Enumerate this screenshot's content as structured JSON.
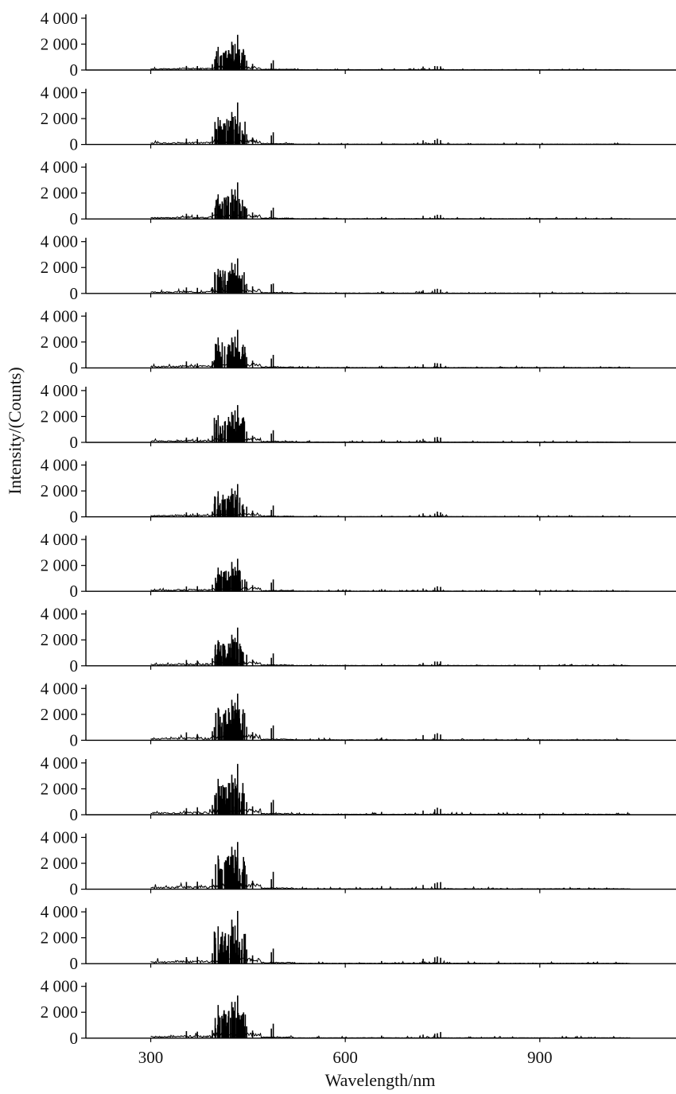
{
  "chart_data": {
    "type": "line",
    "layout": "stacked-panels",
    "panel_count": 14,
    "xlabel": "Wavelength/nm",
    "ylabel": "Intensity/(Counts)",
    "xlim": [
      200,
      1110
    ],
    "ylim": [
      0,
      4300
    ],
    "x_ticks": [
      300,
      600,
      900
    ],
    "x_tick_labels": [
      "300",
      "600",
      "900"
    ],
    "y_ticks": [
      0,
      2000,
      4000
    ],
    "y_tick_labels": [
      "0",
      "2 000",
      "4 000"
    ],
    "grid": false,
    "legend": "none",
    "series_color": "#000000",
    "prominent_peaks_nm": [
      404,
      414,
      420,
      425,
      427,
      430,
      434,
      437,
      441,
      448,
      486,
      489,
      656,
      720,
      738,
      742,
      747
    ],
    "panels": [
      {
        "peak_max": 2750,
        "noise_seed": 11
      },
      {
        "peak_max": 3300,
        "noise_seed": 12
      },
      {
        "peak_max": 2950,
        "noise_seed": 13
      },
      {
        "peak_max": 3050,
        "noise_seed": 14
      },
      {
        "peak_max": 3300,
        "noise_seed": 15
      },
      {
        "peak_max": 3250,
        "noise_seed": 16
      },
      {
        "peak_max": 2850,
        "noise_seed": 17
      },
      {
        "peak_max": 2800,
        "noise_seed": 18
      },
      {
        "peak_max": 3100,
        "noise_seed": 19
      },
      {
        "peak_max": 4050,
        "noise_seed": 20
      },
      {
        "peak_max": 4100,
        "noise_seed": 21
      },
      {
        "peak_max": 4200,
        "noise_seed": 22
      },
      {
        "peak_max": 4150,
        "noise_seed": 23
      },
      {
        "peak_max": 3600,
        "noise_seed": 24
      }
    ]
  }
}
